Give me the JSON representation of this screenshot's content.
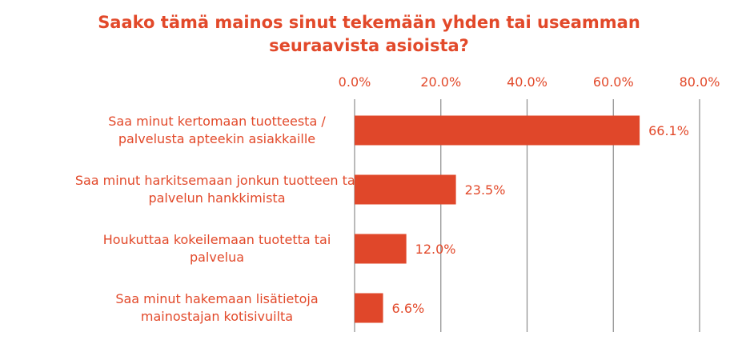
{
  "chart_data": {
    "type": "bar",
    "orientation": "horizontal",
    "title_lines": [
      "Saako tämä mainos sinut tekemään yhden tai useamman",
      "seuraavista asioista?"
    ],
    "categories": [
      [
        "Saa minut kertomaan tuotteesta /",
        "palvelusta apteekin asiakkaille"
      ],
      [
        "Saa minut harkitsemaan jonkun tuotteen tai",
        "palvelun hankkimista"
      ],
      [
        "Houkuttaa kokeilemaan tuotetta tai",
        "palvelua"
      ],
      [
        "Saa minut hakemaan lisätietoja",
        "mainostajan kotisivuilta"
      ]
    ],
    "values": [
      66.1,
      23.5,
      12.0,
      6.6
    ],
    "data_labels": [
      "66.1%",
      "23.5%",
      "12.0%",
      "6.6%"
    ],
    "x_ticks": [
      "0.0%",
      "20.0%",
      "40.0%",
      "60.0%",
      "80.0%"
    ],
    "x_tick_values": [
      0,
      20,
      40,
      60,
      80
    ],
    "xlim": [
      0,
      80
    ],
    "x_axis_position": "top",
    "grid": true,
    "legend": "none",
    "colors": {
      "bar": "#e0472a",
      "text": "#e2492a",
      "grid": "#8c8c8c"
    }
  }
}
